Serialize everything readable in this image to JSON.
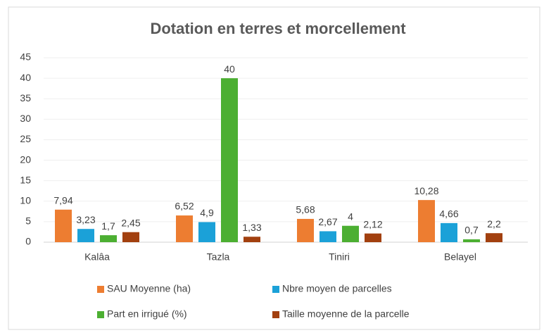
{
  "chart_data": {
    "type": "bar",
    "title": "Dotation en terres et morcellement",
    "categories": [
      "Kalâa",
      "Tazla",
      "Tiniri",
      "Belayel"
    ],
    "series": [
      {
        "name": "SAU Moyenne (ha)",
        "color": "#ed7d31",
        "values": [
          7.94,
          6.52,
          5.68,
          10.28
        ],
        "value_labels": [
          "7,94",
          "6,52",
          "5,68",
          "10,28"
        ]
      },
      {
        "name": "Nbre moyen de parcelles",
        "color": "#1ba1d8",
        "values": [
          3.23,
          4.9,
          2.67,
          4.66
        ],
        "value_labels": [
          "3,23",
          "4,9",
          "2,67",
          "4,66"
        ]
      },
      {
        "name": "Part en irrigué (%)",
        "color": "#4caf32",
        "values": [
          1.7,
          40,
          4,
          0.7
        ],
        "value_labels": [
          "1,7",
          "40",
          "4",
          "0,7"
        ]
      },
      {
        "name": "Taille moyenne de la parcelle",
        "color": "#a2400f",
        "values": [
          2.45,
          1.33,
          2.12,
          2.2
        ],
        "value_labels": [
          "2,45",
          "1,33",
          "2,12",
          "2,2"
        ]
      }
    ],
    "ylim": [
      0,
      45
    ],
    "yticks": [
      0,
      5,
      10,
      15,
      20,
      25,
      30,
      35,
      40,
      45
    ],
    "grid": true,
    "legend": "bottom"
  }
}
